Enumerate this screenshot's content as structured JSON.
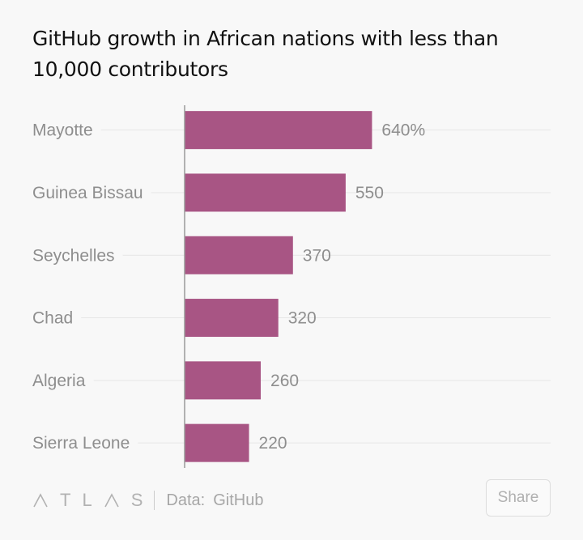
{
  "chart_data": {
    "type": "bar",
    "orientation": "horizontal",
    "title": "GitHub growth in African nations with less than 10,000 contributors",
    "categories": [
      "Mayotte",
      "Guinea Bissau",
      "Seychelles",
      "Chad",
      "Algeria",
      "Sierra Leone"
    ],
    "values": [
      640,
      550,
      370,
      320,
      260,
      220
    ],
    "value_labels": [
      "640%",
      "550",
      "370",
      "320",
      "260",
      "220"
    ],
    "unit": "%",
    "xlim": [
      0,
      1250
    ],
    "grid": true,
    "bar_color": "#a85584"
  },
  "footer": {
    "brand_letters": [
      "T",
      "L",
      "S"
    ],
    "source_label": "Data:",
    "source_name": "GitHub",
    "share_label": "Share"
  }
}
